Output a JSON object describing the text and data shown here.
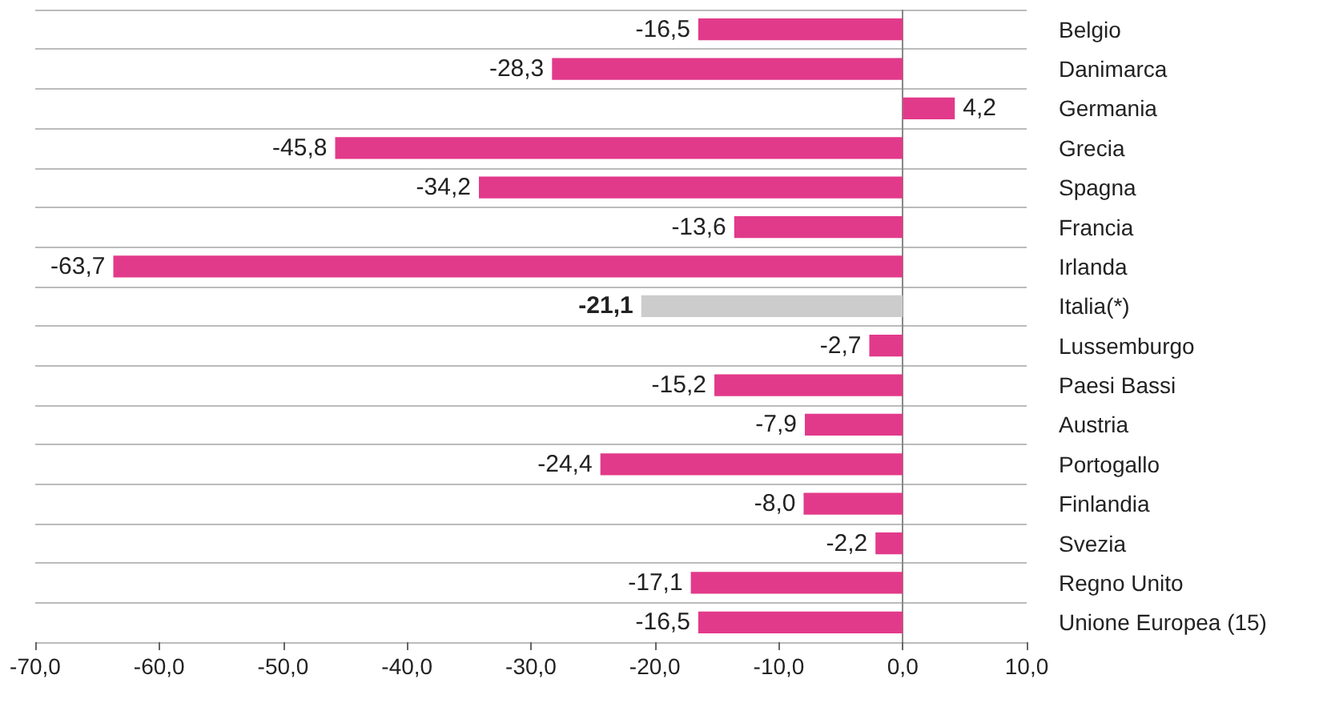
{
  "chart_data": {
    "type": "bar",
    "orientation": "horizontal",
    "categories": [
      "Belgio",
      "Danimarca",
      "Germania",
      "Grecia",
      "Spagna",
      "Francia",
      "Irlanda",
      "Italia(*)",
      "Lussemburgo",
      "Paesi Bassi",
      "Austria",
      "Portogallo",
      "Finlandia",
      "Svezia",
      "Regno Unito",
      "Unione Europea (15)"
    ],
    "values": [
      -16.5,
      -28.3,
      4.2,
      -45.8,
      -34.2,
      -13.6,
      -63.7,
      -21.1,
      -2.7,
      -15.2,
      -7.9,
      -24.4,
      -8.0,
      -2.2,
      -17.1,
      -16.5
    ],
    "value_labels": [
      "-16,5",
      "-28,3",
      "4,2",
      "-45,8",
      "-34,2",
      "-13,6",
      "-63,7",
      "-21,1",
      "-2,7",
      "-15,2",
      "-7,9",
      "-24,4",
      "-8,0",
      "-2,2",
      "-17,1",
      "-16,5"
    ],
    "colors": [
      "#e23a8a",
      "#e23a8a",
      "#e23a8a",
      "#e23a8a",
      "#e23a8a",
      "#e23a8a",
      "#e23a8a",
      "#cccccc",
      "#e23a8a",
      "#e23a8a",
      "#e23a8a",
      "#e23a8a",
      "#e23a8a",
      "#e23a8a",
      "#e23a8a",
      "#e23a8a"
    ],
    "xlim": [
      -70,
      10
    ],
    "xticks": [
      {
        "value": -70,
        "label": "-70,0"
      },
      {
        "value": -60,
        "label": "-60,0"
      },
      {
        "value": -50,
        "label": "-50,0"
      },
      {
        "value": -40,
        "label": "-40,0"
      },
      {
        "value": -30,
        "label": "-30,0"
      },
      {
        "value": -20,
        "label": "-20,0"
      },
      {
        "value": -10,
        "label": "-10,0"
      },
      {
        "value": 0,
        "label": "0,0"
      },
      {
        "value": 10,
        "label": "10,0"
      }
    ],
    "grid": "y"
  }
}
